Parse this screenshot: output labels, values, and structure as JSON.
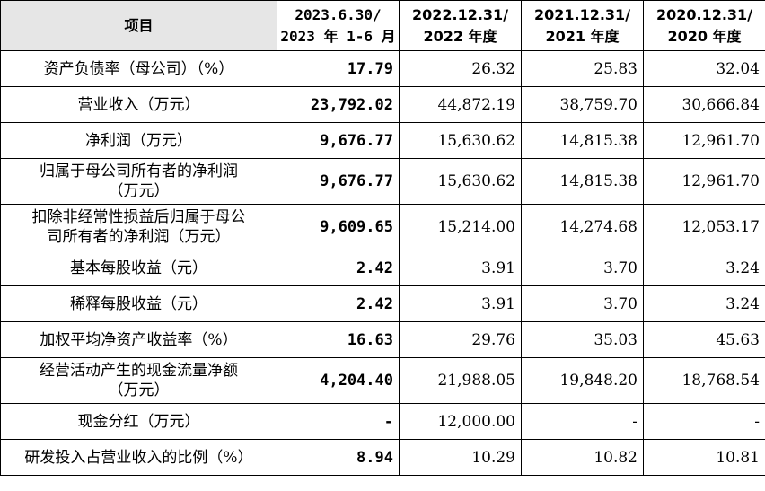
{
  "header": {
    "item": "项目",
    "cols": [
      {
        "line1": "2023.6.30/",
        "line2": "2023 年 1-6 月"
      },
      {
        "line1": "2022.12.31/",
        "line2": "2022 年度"
      },
      {
        "line1": "2021.12.31/",
        "line2": "2021 年度"
      },
      {
        "line1": "2020.12.31/",
        "line2": "2020 年度"
      }
    ]
  },
  "rows": [
    {
      "label1": "资产负债率（母公司）（%）",
      "label2": "",
      "v": [
        "17.79",
        "26.32",
        "25.83",
        "32.04"
      ]
    },
    {
      "label1": "营业收入（万元）",
      "label2": "",
      "v": [
        "23,792.02",
        "44,872.19",
        "38,759.70",
        "30,666.84"
      ]
    },
    {
      "label1": "净利润（万元）",
      "label2": "",
      "v": [
        "9,676.77",
        "15,630.62",
        "14,815.38",
        "12,961.70"
      ]
    },
    {
      "label1": "归属于母公司所有者的净利润",
      "label2": "（万元）",
      "v": [
        "9,676.77",
        "15,630.62",
        "14,815.38",
        "12,961.70"
      ]
    },
    {
      "label1": "扣除非经常性损益后归属于母公",
      "label2": "司所有者的净利润（万元）",
      "v": [
        "9,609.65",
        "15,214.00",
        "14,274.68",
        "12,053.17"
      ]
    },
    {
      "label1": "基本每股收益（元）",
      "label2": "",
      "v": [
        "2.42",
        "3.91",
        "3.70",
        "3.24"
      ]
    },
    {
      "label1": "稀释每股收益（元）",
      "label2": "",
      "v": [
        "2.42",
        "3.91",
        "3.70",
        "3.24"
      ]
    },
    {
      "label1": "加权平均净资产收益率（%）",
      "label2": "",
      "v": [
        "16.63",
        "29.76",
        "35.03",
        "45.63"
      ]
    },
    {
      "label1": "经营活动产生的现金流量净额",
      "label2": "（万元）",
      "v": [
        "4,204.40",
        "21,988.05",
        "19,848.20",
        "18,768.54"
      ]
    },
    {
      "label1": "现金分红（万元）",
      "label2": "",
      "v": [
        "-",
        "12,000.00",
        "-",
        "-"
      ]
    },
    {
      "label1": "研发投入占营业收入的比例（%）",
      "label2": "",
      "v": [
        "8.94",
        "10.29",
        "10.82",
        "10.81"
      ]
    }
  ]
}
